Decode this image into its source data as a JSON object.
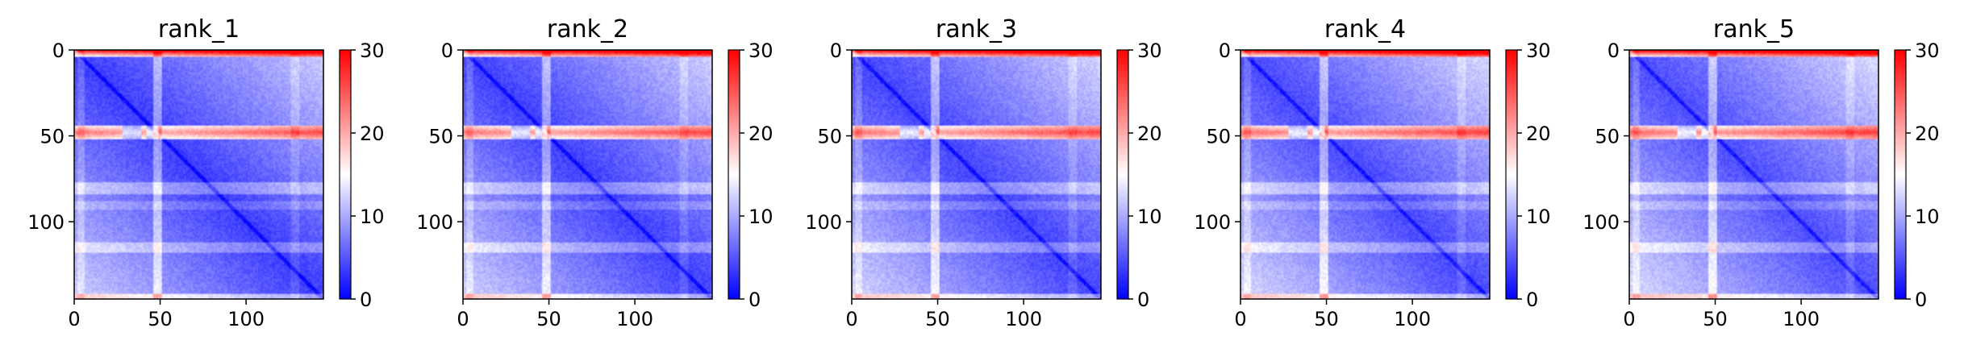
{
  "chart_data": {
    "type": "heatmap",
    "colormap": "bwr",
    "matrix_size": 145,
    "color_range": [
      0,
      30
    ],
    "x_ticks": [
      0,
      50,
      100
    ],
    "y_ticks": [
      0,
      50,
      100
    ],
    "colorbar_ticks": [
      0,
      10,
      20,
      30
    ],
    "panels": [
      {
        "title": "rank_1"
      },
      {
        "title": "rank_2"
      },
      {
        "title": "rank_3"
      },
      {
        "title": "rank_4"
      },
      {
        "title": "rank_5"
      }
    ],
    "grid": false,
    "legend": "none"
  }
}
